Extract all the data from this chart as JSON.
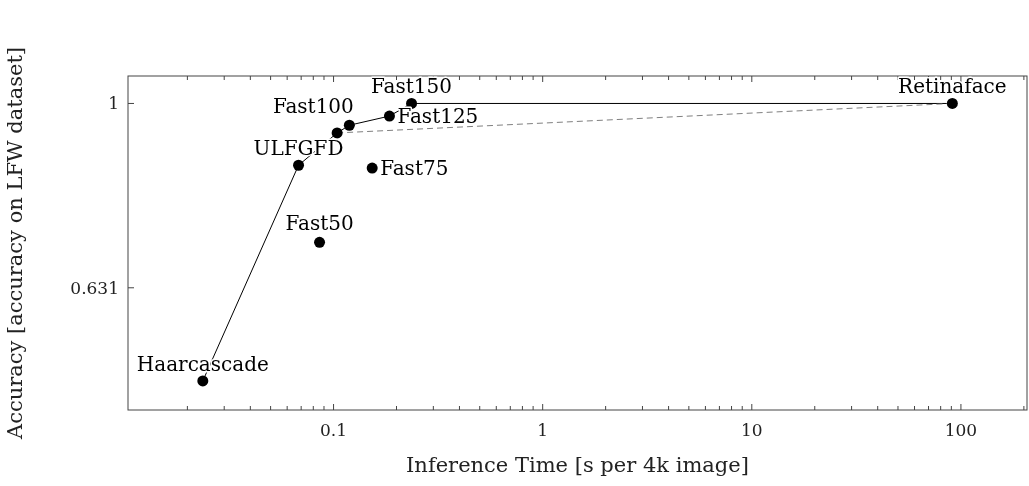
{
  "chart_data": {
    "type": "scatter",
    "xlabel": "Inference Time [s per 4k image]",
    "ylabel": "Accuracy [accuracy on LFW dataset]",
    "log": "xy",
    "marker": "circle",
    "grid": false,
    "xlim": [
      0.0104,
      207
    ],
    "ylim": [
      0.465,
      1.071
    ],
    "xticks": [
      {
        "value": 0.02,
        "label": null
      },
      {
        "value": 0.03,
        "label": null
      },
      {
        "value": 0.04,
        "label": null
      },
      {
        "value": 0.05,
        "label": null
      },
      {
        "value": 0.06,
        "label": null
      },
      {
        "value": 0.07,
        "label": null
      },
      {
        "value": 0.08,
        "label": null
      },
      {
        "value": 0.09,
        "label": null
      },
      0.1,
      {
        "value": 0.2,
        "label": null
      },
      {
        "value": 0.3,
        "label": null
      },
      {
        "value": 0.4,
        "label": null
      },
      {
        "value": 0.5,
        "label": null
      },
      {
        "value": 0.6,
        "label": null
      },
      {
        "value": 0.7,
        "label": null
      },
      {
        "value": 0.8,
        "label": null
      },
      {
        "value": 0.9,
        "label": null
      },
      1,
      {
        "value": 2,
        "label": null
      },
      {
        "value": 3,
        "label": null
      },
      {
        "value": 4,
        "label": null
      },
      {
        "value": 5,
        "label": null
      },
      {
        "value": 6,
        "label": null
      },
      {
        "value": 7,
        "label": null
      },
      {
        "value": 8,
        "label": null
      },
      {
        "value": 9,
        "label": null
      },
      10,
      {
        "value": 20,
        "label": null
      },
      {
        "value": 30,
        "label": null
      },
      {
        "value": 40,
        "label": null
      },
      {
        "value": 50,
        "label": null
      },
      {
        "value": 60,
        "label": null
      },
      {
        "value": 70,
        "label": null
      },
      {
        "value": 80,
        "label": null
      },
      {
        "value": 90,
        "label": null
      },
      100,
      {
        "value": 200,
        "label": null
      }
    ],
    "yticks": [
      1,
      0.631
    ],
    "series": [
      {
        "type": "line",
        "marker": "none",
        "color": "#000000",
        "line_style": "solid",
        "x": [
          0.0237,
          0.068,
          0.104,
          0.119,
          0.185,
          0.236,
          91
        ],
        "values": [
          0.5,
          0.857,
          0.929,
          0.947,
          0.969,
          1.0,
          1.0
        ]
      },
      {
        "type": "line",
        "marker": "none",
        "color": "#808080",
        "line_style": "dashed",
        "x": [
          0.104,
          91
        ],
        "values": [
          0.929,
          1.0
        ]
      },
      {
        "color": "#000000",
        "x": [
          0.0237,
          0.068,
          0.0857,
          0.104,
          0.119,
          0.153,
          0.185,
          0.236,
          91
        ],
        "values": [
          0.5,
          0.857,
          0.707,
          0.929,
          0.947,
          0.851,
          0.969,
          1.0,
          1.0
        ]
      }
    ],
    "annotations": [
      {
        "text": "Haarcascade",
        "x": 0.0237,
        "y": 0.5
      },
      {
        "text": "ULFGFD",
        "x": 0.068,
        "y": 0.857
      },
      {
        "text": "Fast50",
        "x": 0.0857,
        "y": 0.707
      },
      {
        "text": "Fast100",
        "x": 0.119,
        "y": 0.947
      },
      {
        "text": "Fast75",
        "x": 0.153,
        "y": 0.851
      },
      {
        "text": "Fast125",
        "x": 0.185,
        "y": 0.969
      },
      {
        "text": "Fast150",
        "x": 0.236,
        "y": 1.0
      },
      {
        "text": "Retinaface",
        "x": 91,
        "y": 1.0
      }
    ]
  }
}
